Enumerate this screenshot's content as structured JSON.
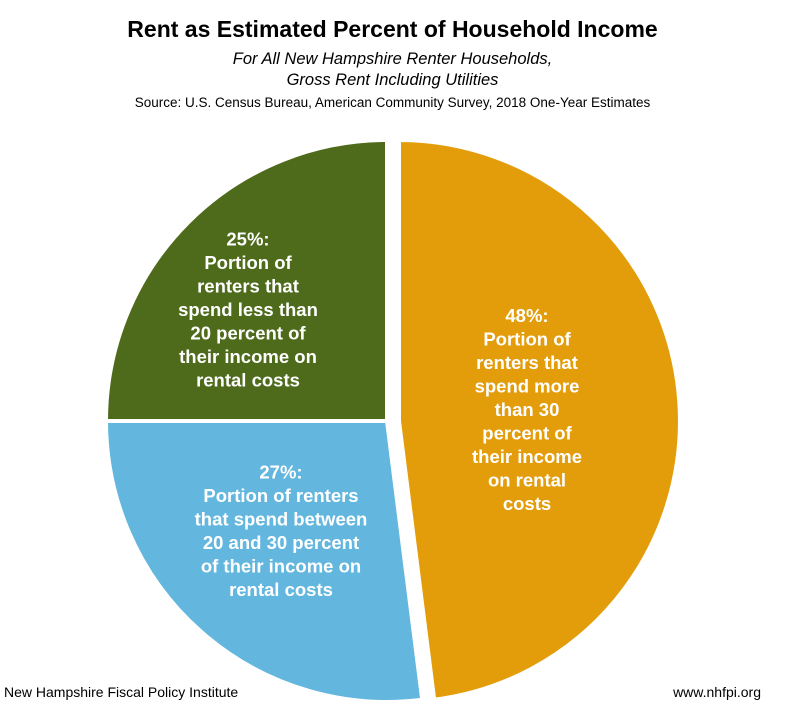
{
  "title": "Rent as Estimated Percent of Household Income",
  "subtitle_lines": [
    "For All New Hampshire Renter Households,",
    "Gross Rent Including Utilities"
  ],
  "source": "Source: U.S. Census Bureau, American Community Survey, 2018 One-Year Estimates",
  "footer": {
    "left": "New Hampshire Fiscal Policy Institute",
    "right": "www.nhfpi.org"
  },
  "chart_data": {
    "type": "pie",
    "title": "Rent as Estimated Percent of Household Income",
    "slices": [
      {
        "category": "Portion of renters that spend more than 30 percent of their income on rental costs",
        "value": 48,
        "color": "#e39d0a",
        "label_lines": [
          "48%:",
          "Portion of",
          "renters that",
          "spend more",
          "than 30",
          "percent of",
          "their income",
          "on rental",
          "costs"
        ]
      },
      {
        "category": "Portion of renters that spend between 20 and 30 percent of their income on rental costs",
        "value": 27,
        "color": "#63b7de",
        "label_lines": [
          "27%:",
          "Portion of renters",
          "that spend between",
          "20 and 30 percent",
          "of their income on",
          "rental costs"
        ]
      },
      {
        "category": "Portion of renters that spend less than 20 percent of their income on rental costs",
        "value": 25,
        "color": "#4e6b1c",
        "label_lines": [
          "25%:",
          "Portion of",
          "renters that",
          "spend less than",
          "20 percent of",
          "their income on",
          "rental costs"
        ]
      }
    ],
    "legend": "none"
  }
}
